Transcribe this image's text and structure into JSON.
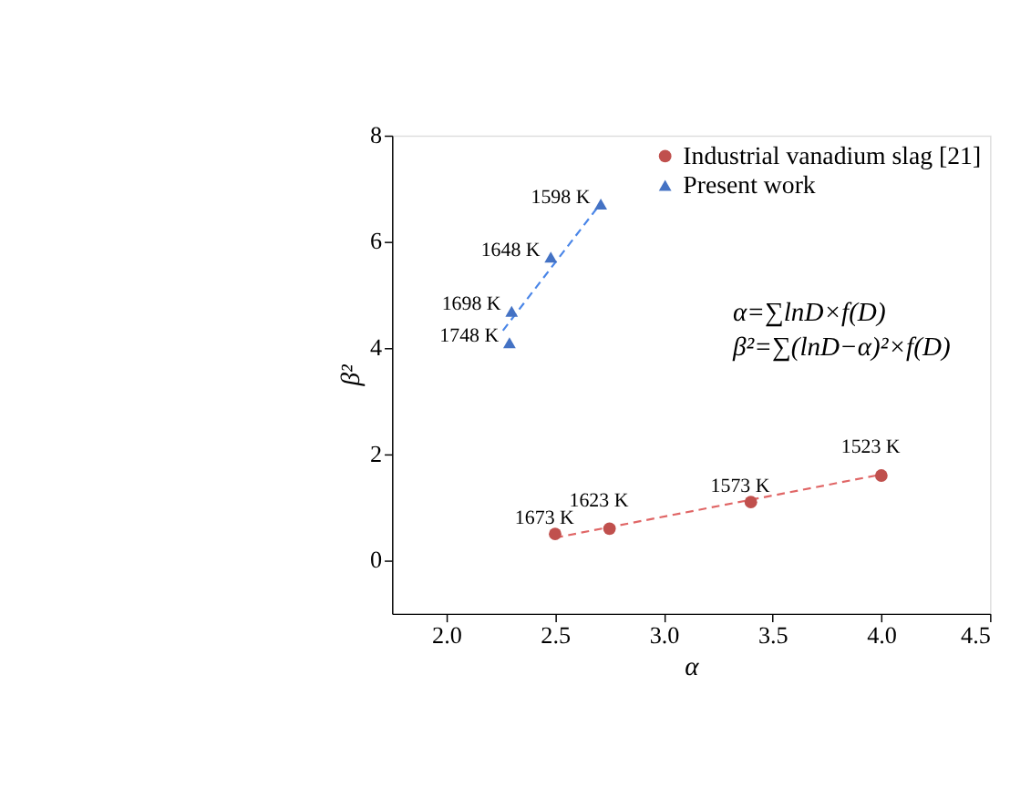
{
  "chart_data": {
    "type": "scatter",
    "xlabel": "α",
    "ylabel": "β²",
    "xlim": [
      1.75,
      4.5
    ],
    "ylim": [
      -1,
      8
    ],
    "xticks": [
      {
        "value": 2.0,
        "label": "2.0"
      },
      {
        "value": 2.5,
        "label": "2.5"
      },
      {
        "value": 3.0,
        "label": "3.0"
      },
      {
        "value": 3.5,
        "label": "3.5"
      },
      {
        "value": 4.0,
        "label": "4.0"
      },
      {
        "value": 4.5,
        "label": "4.5"
      }
    ],
    "yticks": [
      0,
      2,
      4,
      6,
      8
    ],
    "grid": false,
    "legend": "top right",
    "series": [
      {
        "name": "Industrial vanadium slag [21]",
        "marker": "circle",
        "color": "#c0504d",
        "x": [
          2.5,
          2.75,
          3.4,
          4.0
        ],
        "values": [
          0.5,
          0.6,
          1.1,
          1.6
        ]
      },
      {
        "name": "Present work",
        "marker": "triangle",
        "color": "#4472c4",
        "x": [
          2.29,
          2.3,
          2.48,
          2.71
        ],
        "values": [
          4.1,
          4.69,
          5.71,
          6.71
        ]
      },
      {
        "type": "line",
        "line_style": "dashed",
        "marker": "none",
        "color": "#e06666",
        "x": [
          2.5,
          4.0
        ],
        "values": [
          0.43,
          1.62
        ]
      },
      {
        "type": "line",
        "line_style": "dashed",
        "marker": "none",
        "color": "#4a86e8",
        "x": [
          2.26,
          2.69
        ],
        "values": [
          4.33,
          6.62
        ]
      }
    ],
    "annotations": [
      {
        "text": "1673 K",
        "x": 2.5,
        "y": 0.5
      },
      {
        "text": "1623 K",
        "x": 2.75,
        "y": 0.6
      },
      {
        "text": "1573 K",
        "x": 3.4,
        "y": 1.1
      },
      {
        "text": "1523 K",
        "x": 4.0,
        "y": 1.6
      },
      {
        "text": "1748 K",
        "x": 2.29,
        "y": 4.1
      },
      {
        "text": "1698 K",
        "x": 2.3,
        "y": 4.69
      },
      {
        "text": "1648 K",
        "x": 2.48,
        "y": 5.71
      },
      {
        "text": "1598 K",
        "x": 2.71,
        "y": 6.71
      },
      "α=∑lnD×f(D)",
      "β²=∑(lnD−α)²×f(D)"
    ]
  }
}
